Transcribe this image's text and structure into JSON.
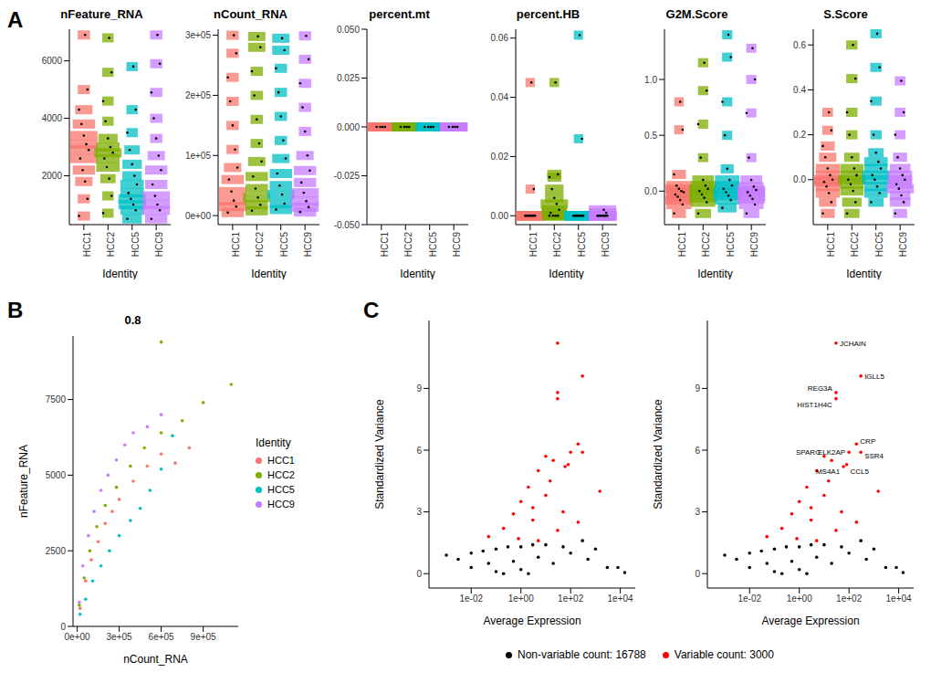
{
  "panel_labels": [
    "A",
    "B",
    "C"
  ],
  "chart_data": [
    {
      "type": "violin",
      "title": "nFeature_RNA",
      "x_label": "Identity",
      "categories": [
        "HCC1",
        "HCC2",
        "HCC5",
        "HCC9"
      ],
      "colors": [
        "#F8766D",
        "#7CAE00",
        "#00BFC4",
        "#C77CFF"
      ],
      "values": [
        [
          600,
          1200,
          1800,
          2200,
          2600,
          2900,
          3100,
          3400,
          3800,
          4300,
          5000,
          6900
        ],
        [
          700,
          1300,
          1900,
          2300,
          2600,
          2800,
          3000,
          3300,
          3900,
          4600,
          5600,
          6800
        ],
        [
          500,
          800,
          1000,
          1200,
          1400,
          1700,
          2000,
          2400,
          2900,
          3500,
          4300,
          5800
        ],
        [
          500,
          800,
          1000,
          1300,
          1700,
          2200,
          2700,
          3300,
          4000,
          4900,
          5900,
          6900
        ]
      ],
      "ylim": [
        300,
        7100
      ],
      "yticks": [
        2000,
        4000,
        6000
      ],
      "grid": false
    },
    {
      "type": "violin",
      "title": "nCount_RNA",
      "x_label": "Identity",
      "categories": [
        "HCC1",
        "HCC2",
        "HCC5",
        "HCC9"
      ],
      "colors": [
        "#F8766D",
        "#7CAE00",
        "#00BFC4",
        "#C77CFF"
      ],
      "values": [
        [
          5000,
          15000,
          25000,
          40000,
          60000,
          80000,
          110000,
          150000,
          190000,
          230000,
          270000,
          300000
        ],
        [
          8000,
          18000,
          30000,
          45000,
          65000,
          90000,
          120000,
          160000,
          200000,
          240000,
          280000,
          298000
        ],
        [
          10000,
          20000,
          35000,
          50000,
          70000,
          95000,
          125000,
          165000,
          205000,
          245000,
          275000,
          295000
        ],
        [
          6000,
          14000,
          24000,
          38000,
          55000,
          75000,
          100000,
          140000,
          180000,
          220000,
          260000,
          299000
        ]
      ],
      "ylim": [
        -15000,
        310000
      ],
      "yticks": [
        {
          "value": 0,
          "label": "0e+00"
        },
        {
          "value": 100000,
          "label": "1e+05"
        },
        {
          "value": 200000,
          "label": "2e+05"
        },
        {
          "value": 300000,
          "label": "3e+05"
        }
      ],
      "grid": false
    },
    {
      "type": "violin",
      "title": "percent.mt",
      "x_label": "Identity",
      "categories": [
        "HCC1",
        "HCC2",
        "HCC5",
        "HCC9"
      ],
      "colors": [
        "#F8766D",
        "#7CAE00",
        "#00BFC4",
        "#C77CFF"
      ],
      "values": [
        [
          0,
          0,
          0,
          0
        ],
        [
          0,
          0,
          0,
          0
        ],
        [
          0,
          0,
          0,
          0
        ],
        [
          0,
          0,
          0,
          0
        ]
      ],
      "ylim": [
        -0.05,
        0.05
      ],
      "yticks": [
        {
          "value": -0.05,
          "label": "-0.050"
        },
        {
          "value": -0.025,
          "label": "-0.025"
        },
        {
          "value": 0,
          "label": "0.000"
        },
        {
          "value": 0.025,
          "label": "0.025"
        },
        {
          "value": 0.05,
          "label": "0.050"
        }
      ],
      "grid": false
    },
    {
      "type": "violin",
      "title": "percent.HB",
      "x_label": "Identity",
      "categories": [
        "HCC1",
        "HCC2",
        "HCC5",
        "HCC9"
      ],
      "colors": [
        "#F8766D",
        "#7CAE00",
        "#00BFC4",
        "#C77CFF"
      ],
      "values": [
        [
          0,
          0,
          0,
          0,
          0,
          0,
          0,
          0,
          0,
          0,
          0.009,
          0.045
        ],
        [
          0,
          0,
          0,
          0,
          0.001,
          0.002,
          0.004,
          0.006,
          0.009,
          0.013,
          0.014,
          0.045
        ],
        [
          0,
          0,
          0,
          0,
          0,
          0,
          0,
          0,
          0,
          0,
          0.026,
          0.061
        ],
        [
          0,
          0,
          0,
          0,
          0,
          0,
          0,
          0,
          0,
          0,
          0.001,
          0.002
        ]
      ],
      "ylim": [
        -0.003,
        0.063
      ],
      "yticks": [
        {
          "value": 0,
          "label": "0.00"
        },
        {
          "value": 0.02,
          "label": "0.02"
        },
        {
          "value": 0.04,
          "label": "0.04"
        },
        {
          "value": 0.06,
          "label": "0.06"
        }
      ],
      "grid": false
    },
    {
      "type": "violin",
      "title": "G2M.Score",
      "x_label": "Identity",
      "categories": [
        "HCC1",
        "HCC2",
        "HCC5",
        "HCC9"
      ],
      "colors": [
        "#F8766D",
        "#7CAE00",
        "#00BFC4",
        "#C77CFF"
      ],
      "values": [
        [
          -0.2,
          -0.12,
          -0.08,
          -0.05,
          -0.03,
          -0.01,
          0,
          0.02,
          0.05,
          0.15,
          0.55,
          0.8
        ],
        [
          -0.2,
          -0.1,
          -0.06,
          -0.03,
          0,
          0.02,
          0.05,
          0.1,
          0.3,
          0.6,
          0.9,
          1.15
        ],
        [
          -0.15,
          -0.08,
          -0.04,
          -0.01,
          0.02,
          0.05,
          0.1,
          0.2,
          0.5,
          0.8,
          1.2,
          1.4
        ],
        [
          -0.2,
          -0.12,
          -0.07,
          -0.04,
          -0.01,
          0.01,
          0.04,
          0.1,
          0.3,
          0.7,
          1.0,
          1.28
        ]
      ],
      "ylim": [
        -0.3,
        1.45
      ],
      "yticks": [
        {
          "value": 0,
          "label": "0.0"
        },
        {
          "value": 0.5,
          "label": "0.5"
        },
        {
          "value": 1,
          "label": "1.0"
        }
      ],
      "grid": false
    },
    {
      "type": "violin",
      "title": "S.Score",
      "x_label": "Identity",
      "categories": [
        "HCC1",
        "HCC2",
        "HCC5",
        "HCC9"
      ],
      "colors": [
        "#F8766D",
        "#7CAE00",
        "#00BFC4",
        "#C77CFF"
      ],
      "values": [
        [
          -0.15,
          -0.1,
          -0.06,
          -0.03,
          -0.01,
          0,
          0.02,
          0.05,
          0.1,
          0.15,
          0.22,
          0.3
        ],
        [
          -0.15,
          -0.1,
          -0.05,
          -0.02,
          0,
          0.02,
          0.05,
          0.1,
          0.2,
          0.3,
          0.45,
          0.6
        ],
        [
          -0.1,
          -0.06,
          -0.03,
          0,
          0.02,
          0.05,
          0.08,
          0.12,
          0.2,
          0.35,
          0.5,
          0.65
        ],
        [
          -0.15,
          -0.1,
          -0.07,
          -0.04,
          -0.02,
          0,
          0.02,
          0.05,
          0.1,
          0.2,
          0.3,
          0.44
        ]
      ],
      "ylim": [
        -0.2,
        0.67
      ],
      "yticks": [
        {
          "value": 0,
          "label": "0.0"
        },
        {
          "value": 0.2,
          "label": "0.2"
        },
        {
          "value": 0.4,
          "label": "0.4"
        },
        {
          "value": 0.6,
          "label": "0.6"
        }
      ],
      "grid": false
    },
    {
      "type": "scatter",
      "title": "0.8",
      "x_label": "nCount_RNA",
      "y_label": "nFeature_RNA",
      "legend_title": "Identity",
      "legend": "right",
      "series": [
        {
          "name": "HCC1",
          "color": "#F8766D",
          "x": [
            20000,
            60000,
            100000,
            150000,
            200000,
            250000,
            300000,
            400000,
            500000,
            600000,
            700000,
            800000
          ],
          "values": [
            600,
            1500,
            2200,
            2800,
            3400,
            3800,
            4200,
            4800,
            5300,
            5700,
            5400,
            5900
          ]
        },
        {
          "name": "HCC2",
          "color": "#7CAE00",
          "x": [
            15000,
            50000,
            90000,
            140000,
            200000,
            280000,
            380000,
            480000,
            600000,
            750000,
            900000,
            1100000,
            600000
          ],
          "values": [
            700,
            1600,
            2500,
            3300,
            4000,
            4600,
            5300,
            5900,
            6400,
            6800,
            7400,
            8000,
            9400
          ]
        },
        {
          "name": "HCC5",
          "color": "#00BFC4",
          "x": [
            20000,
            60000,
            110000,
            170000,
            230000,
            300000,
            380000,
            450000,
            520000,
            600000,
            680000
          ],
          "values": [
            400,
            900,
            1500,
            2000,
            2500,
            3000,
            3500,
            3900,
            4500,
            5200,
            6300
          ]
        },
        {
          "name": "HCC9",
          "color": "#C77CFF",
          "x": [
            15000,
            40000,
            80000,
            120000,
            170000,
            220000,
            280000,
            340000,
            400000,
            500000,
            600000
          ],
          "values": [
            800,
            2000,
            3000,
            3800,
            4500,
            5000,
            5500,
            6000,
            6400,
            6600,
            7000
          ]
        }
      ],
      "xlim": [
        -30000,
        1150000
      ],
      "xticks": [
        {
          "value": 0,
          "label": "0e+00"
        },
        {
          "value": 300000,
          "label": "3e+05"
        },
        {
          "value": 600000,
          "label": "6e+05"
        },
        {
          "value": 900000,
          "label": "9e+05"
        }
      ],
      "ylim": [
        0,
        9600
      ],
      "yticks": [
        0,
        2500,
        5000,
        7500
      ],
      "grid": false
    },
    {
      "type": "scatter",
      "log": "x",
      "x_label": "Average Expression",
      "y_label": "Standardized Variance",
      "series": [
        {
          "color": "#000000",
          "x": [
            0.001,
            0.003,
            0.01,
            0.01,
            0.03,
            0.05,
            0.1,
            0.1,
            0.3,
            0.5,
            1,
            1,
            3,
            5,
            10,
            20,
            50,
            100,
            300,
            500,
            1000,
            3000,
            8000,
            15000,
            0.2,
            2
          ],
          "values": [
            0.9,
            0.7,
            1.0,
            0.3,
            1.1,
            0.5,
            1.2,
            0.1,
            1.3,
            0.6,
            1.3,
            0.2,
            1.4,
            0.8,
            1.4,
            0.5,
            1.3,
            1.0,
            1.6,
            0.7,
            1.2,
            0.3,
            0.3,
            0.05,
            0,
            0
          ]
        },
        {
          "color": "#FF0000",
          "x": [
            0.05,
            0.2,
            0.5,
            1,
            2,
            3,
            5,
            10,
            20,
            30,
            30,
            300,
            30,
            30,
            200,
            300,
            100,
            80,
            60,
            10,
            1500,
            200,
            5,
            3,
            50,
            0.8,
            15
          ],
          "values": [
            1.8,
            2.2,
            2.9,
            3.5,
            4.2,
            2.6,
            5.0,
            3.8,
            5.5,
            2.1,
            11.2,
            9.6,
            8.8,
            8.5,
            6.3,
            5.9,
            5.9,
            5.3,
            5.2,
            5.7,
            4.0,
            2.5,
            1.6,
            3.2,
            3.0,
            1.7,
            4.5
          ]
        }
      ],
      "xlim": [
        0.0002,
        40000
      ],
      "xticks": [
        {
          "value": 0.01,
          "label": "1e-02"
        },
        {
          "value": 1,
          "label": "1e+00"
        },
        {
          "value": 100,
          "label": "1e+02"
        },
        {
          "value": 10000,
          "label": "1e+04"
        }
      ],
      "ylim": [
        -0.7,
        12.3
      ],
      "yticks": [
        0,
        3,
        6,
        9
      ],
      "grid": false
    },
    {
      "type": "scatter",
      "log": "x",
      "x_label": "Average Expression",
      "y_label": "Standardized Variance",
      "legend": "bottom",
      "series": [
        {
          "name": "Non-variable count: 16788",
          "color": "#000000",
          "x": [
            0.001,
            0.003,
            0.01,
            0.01,
            0.03,
            0.05,
            0.1,
            0.1,
            0.3,
            0.5,
            1,
            1,
            3,
            5,
            10,
            20,
            50,
            100,
            300,
            500,
            1000,
            3000,
            8000,
            15000,
            0.2,
            2
          ],
          "values": [
            0.9,
            0.7,
            1.0,
            0.3,
            1.1,
            0.5,
            1.2,
            0.1,
            1.3,
            0.6,
            1.3,
            0.2,
            1.4,
            0.8,
            1.4,
            0.5,
            1.3,
            1.0,
            1.6,
            0.7,
            1.2,
            0.3,
            0.3,
            0.05,
            0,
            0
          ]
        },
        {
          "name": "Variable count: 3000",
          "color": "#FF0000",
          "x": [
            0.05,
            0.2,
            0.5,
            1,
            2,
            3,
            5,
            10,
            20,
            30,
            30,
            300,
            30,
            30,
            200,
            300,
            100,
            80,
            60,
            10,
            1500,
            200,
            5,
            3,
            50,
            0.8,
            15
          ],
          "values": [
            1.8,
            2.2,
            2.9,
            3.5,
            4.2,
            2.6,
            5.0,
            3.8,
            5.5,
            2.1,
            11.2,
            9.6,
            8.8,
            8.5,
            6.3,
            5.9,
            5.9,
            5.3,
            5.2,
            5.7,
            4.0,
            2.5,
            1.6,
            3.2,
            3.0,
            1.7,
            4.5
          ]
        }
      ],
      "annotations": [
        {
          "text": "JCHAIN",
          "x": 30,
          "y": 11.2
        },
        {
          "text": "IGLL5",
          "x": 300,
          "y": 9.6
        },
        {
          "text": "REG3A",
          "x": 30,
          "y": 8.8
        },
        {
          "text": "HIST1H4C",
          "x": 30,
          "y": 8.5
        },
        {
          "text": "CRP",
          "x": 200,
          "y": 6.3
        },
        {
          "text": "SSR4",
          "x": 300,
          "y": 5.9
        },
        {
          "text": "ELK2AP",
          "x": 100,
          "y": 5.9
        },
        {
          "text": "SPARC",
          "x": 10,
          "y": 5.7
        },
        {
          "text": "MS4A1",
          "x": 60,
          "y": 5.2
        },
        {
          "text": "CCL5",
          "x": 80,
          "y": 5.3
        }
      ],
      "xlim": [
        0.0002,
        40000
      ],
      "xticks": [
        {
          "value": 0.01,
          "label": "1e-02"
        },
        {
          "value": 1,
          "label": "1e+00"
        },
        {
          "value": 100,
          "label": "1e+02"
        },
        {
          "value": 10000,
          "label": "1e+04"
        }
      ],
      "ylim": [
        -0.7,
        12.3
      ],
      "yticks": [
        0,
        3,
        6,
        9
      ],
      "grid": false
    }
  ]
}
